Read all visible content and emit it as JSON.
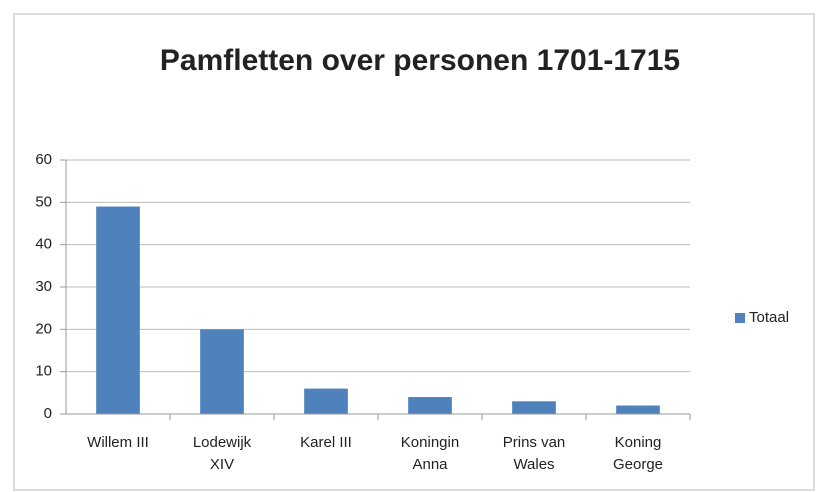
{
  "chart_data": {
    "type": "bar",
    "title": "Pamfletten over personen 1701-1715",
    "categories": [
      "Willem III",
      "Lodewijk\nXIV",
      "Karel III",
      "Koningin\nAnna",
      "Prins van\nWales",
      "Koning\nGeorge"
    ],
    "series": [
      {
        "name": "Totaal",
        "color": "#4f81bd",
        "values": [
          49,
          20,
          6,
          4,
          3,
          2
        ]
      }
    ],
    "ylim": [
      0,
      60
    ],
    "yticks": [
      0,
      10,
      20,
      30,
      40,
      50,
      60
    ],
    "grid": true,
    "legend": "right"
  }
}
